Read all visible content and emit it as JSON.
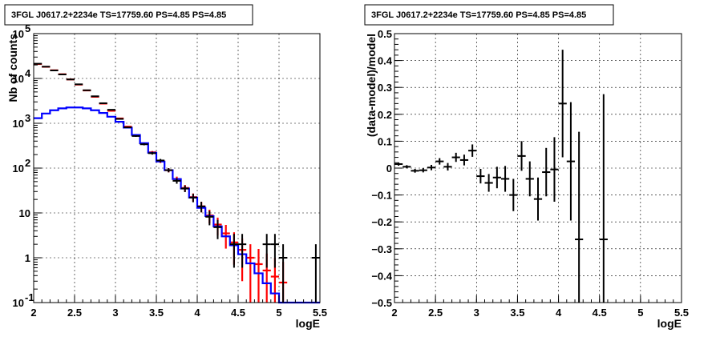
{
  "chart_data": [
    {
      "type": "histogram",
      "title": "3FGL J0617.2+2234e TS=17759.60 PS=4.85 PS=4.85",
      "xlabel": "logE",
      "ylabel": "Nb of counts",
      "xlim": [
        2,
        5.5
      ],
      "ylim": [
        0.1,
        100000
      ],
      "yscale": "log",
      "grid": true,
      "x_ticks": [
        "2",
        "2.5",
        "3",
        "3.5",
        "4",
        "4.5",
        "5",
        "5.5"
      ],
      "y_ticks": [
        {
          "value": 0.1,
          "base": "10",
          "exp": "-1"
        },
        {
          "value": 1,
          "base": "1",
          "exp": ""
        },
        {
          "value": 10,
          "base": "10",
          "exp": ""
        },
        {
          "value": 100,
          "base": "10",
          "exp": "2"
        },
        {
          "value": 1000,
          "base": "10",
          "exp": "3"
        },
        {
          "value": 10000,
          "base": "10",
          "exp": "4"
        },
        {
          "value": 100000,
          "base": "10",
          "exp": "5"
        }
      ],
      "series": [
        {
          "color": "#ff0000",
          "style": "error-bars",
          "x": [
            2.05,
            2.15,
            2.25,
            2.35,
            2.45,
            2.55,
            2.65,
            2.75,
            2.85,
            2.95,
            3.05,
            3.15,
            3.25,
            3.35,
            3.45,
            3.55,
            3.65,
            3.75,
            3.85,
            3.95,
            4.05,
            4.15,
            4.25,
            4.35,
            4.45,
            4.55,
            4.65,
            4.75,
            4.85,
            4.95,
            5.05
          ],
          "y": [
            21000,
            18200,
            15200,
            12400,
            9500,
            7300,
            5400,
            3900,
            2750,
            1900,
            1280,
            840,
            540,
            355,
            225,
            142,
            90,
            57,
            36,
            22.5,
            14,
            8.8,
            5.5,
            3.5,
            2.2,
            1.5,
            1.0,
            0.72,
            0.52,
            0.38,
            0.28
          ],
          "err": [
            145,
            135,
            123,
            111,
            97,
            85,
            73,
            62,
            52,
            43,
            36,
            29,
            23,
            19,
            15,
            12,
            9.5,
            7.5,
            6,
            4.7,
            3.7,
            3,
            2.35,
            1.9,
            1.5,
            1.2,
            1.0,
            0.85,
            0.72,
            0.62,
            0.53
          ]
        },
        {
          "color": "#0000ff",
          "style": "step",
          "x_edges": [
            2.0,
            2.1,
            2.2,
            2.3,
            2.4,
            2.5,
            2.6,
            2.7,
            2.8,
            2.9,
            3.0,
            3.1,
            3.2,
            3.3,
            3.4,
            3.5,
            3.6,
            3.7,
            3.8,
            3.9,
            4.0,
            4.1,
            4.2,
            4.3,
            4.4,
            4.5,
            4.6,
            4.7,
            4.8,
            4.9,
            5.0,
            5.1,
            5.2,
            5.3,
            5.4,
            5.5
          ],
          "y": [
            1300,
            1650,
            1950,
            2150,
            2250,
            2250,
            2150,
            1950,
            1700,
            1400,
            1080,
            800,
            550,
            360,
            220,
            140,
            90,
            57,
            35,
            22,
            13,
            8.5,
            5,
            3,
            1.9,
            1.2,
            0.75,
            0.45,
            0.27,
            0.16,
            0.1,
            0.1,
            0.1,
            0.1,
            0.1
          ]
        },
        {
          "color": "#000000",
          "style": "data-points",
          "x": [
            2.05,
            2.15,
            2.25,
            2.35,
            2.45,
            2.55,
            2.65,
            2.75,
            2.85,
            2.95,
            3.05,
            3.15,
            3.25,
            3.35,
            3.45,
            3.55,
            3.65,
            3.75,
            3.85,
            3.95,
            4.05,
            4.15,
            4.25,
            4.45,
            4.55,
            4.85,
            4.95,
            5.05,
            5.45
          ],
          "y": [
            21300,
            18300,
            15100,
            12300,
            9500,
            7400,
            5450,
            4000,
            2800,
            2000,
            1250,
            810,
            520,
            340,
            215,
            148,
            90,
            52,
            35,
            22,
            14,
            8.2,
            4.8,
            2,
            2,
            2,
            2,
            1,
            1
          ],
          "err": [
            146,
            135,
            123,
            111,
            97,
            86,
            74,
            63,
            53,
            45,
            35,
            28,
            23,
            18,
            15,
            12,
            9.5,
            7.2,
            5.9,
            4.7,
            3.7,
            2.9,
            2.2,
            1.4,
            1.4,
            1.4,
            1.4,
            1,
            1
          ]
        }
      ]
    },
    {
      "type": "scatter",
      "title": "3FGL J0617.2+2234e TS=17759.60 PS=4.85 PS=4.85",
      "xlabel": "logE",
      "ylabel": "(data-model)/model",
      "xlim": [
        2,
        5.5
      ],
      "ylim": [
        -0.5,
        0.5
      ],
      "grid": true,
      "x_ticks": [
        "2",
        "2.5",
        "3",
        "3.5",
        "4",
        "4.5",
        "5",
        "5.5"
      ],
      "y_ticks": [
        "−0.5",
        "−0.4",
        "−0.3",
        "−0.2",
        "−0.1",
        "0",
        "0.1",
        "0.2",
        "0.3",
        "0.4",
        "0.5"
      ],
      "series": [
        {
          "color": "#000000",
          "style": "data-points",
          "x": [
            2.05,
            2.15,
            2.25,
            2.35,
            2.45,
            2.55,
            2.65,
            2.75,
            2.85,
            2.95,
            3.05,
            3.15,
            3.25,
            3.35,
            3.45,
            3.55,
            3.65,
            3.75,
            3.85,
            3.95,
            4.05,
            4.15,
            4.25,
            4.55
          ],
          "y": [
            0.015,
            0.005,
            -0.01,
            -0.008,
            0.002,
            0.025,
            0.005,
            0.04,
            0.03,
            0.065,
            -0.03,
            -0.055,
            -0.035,
            -0.04,
            -0.1,
            0.045,
            -0.04,
            -0.115,
            -0.015,
            -0.005,
            0.24,
            0.025,
            -0.265,
            -0.265
          ],
          "err": [
            0.006,
            0.006,
            0.007,
            0.008,
            0.01,
            0.012,
            0.014,
            0.017,
            0.02,
            0.023,
            0.027,
            0.033,
            0.04,
            0.048,
            0.06,
            0.055,
            0.065,
            0.08,
            0.09,
            0.12,
            0.2,
            0.22,
            0.4,
            0.54
          ]
        }
      ]
    }
  ]
}
